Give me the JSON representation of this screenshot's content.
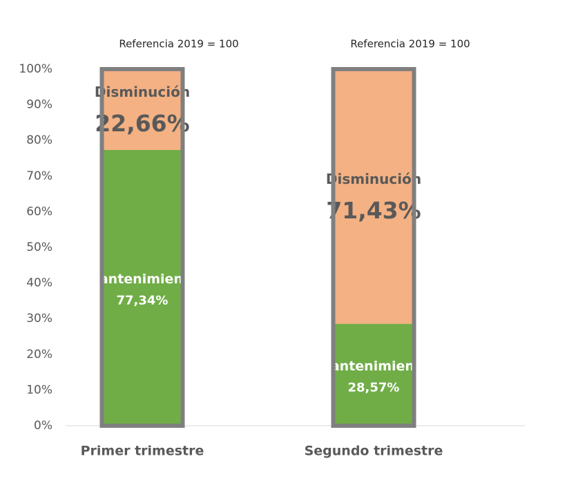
{
  "chart_data": {
    "type": "stacked_bar",
    "annotations": [
      "Referencia 2019 = 100",
      "Referencia 2019 = 100"
    ],
    "categories": [
      "Primer trimestre",
      "Segundo trimestre"
    ],
    "series": [
      {
        "name": "Mantenimiento",
        "color": "#70ad47",
        "values": [
          77.34,
          28.57
        ],
        "value_labels": [
          "77,34%",
          "28,57%"
        ]
      },
      {
        "name": "Disminución",
        "color": "#f4b183",
        "values": [
          22.66,
          71.43
        ],
        "value_labels": [
          "22,66%",
          "71,43%"
        ]
      }
    ],
    "ylim": [
      0,
      100
    ],
    "yticks": [
      {
        "value": 0,
        "label": "0%"
      },
      {
        "value": 10,
        "label": "10%"
      },
      {
        "value": 20,
        "label": "20%"
      },
      {
        "value": 30,
        "label": "30%"
      },
      {
        "value": 40,
        "label": "40%"
      },
      {
        "value": 50,
        "label": "50%"
      },
      {
        "value": 60,
        "label": "60%"
      },
      {
        "value": 70,
        "label": "70%"
      },
      {
        "value": 80,
        "label": "80%"
      },
      {
        "value": 90,
        "label": "90%"
      },
      {
        "value": 100,
        "label": "100%"
      }
    ],
    "grid": false
  }
}
